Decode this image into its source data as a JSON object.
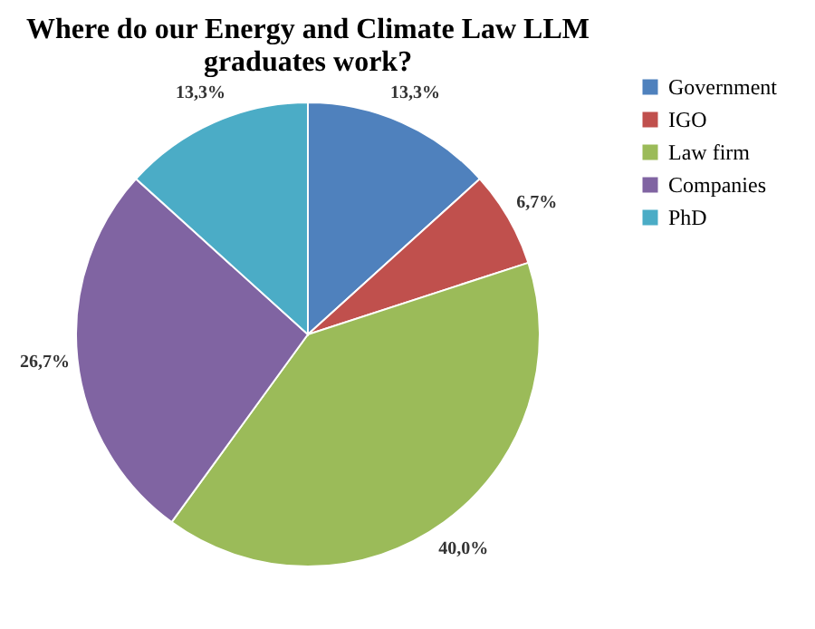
{
  "chart_data": {
    "type": "pie",
    "title": "Where do our Energy and Climate Law LLM graduates work?",
    "categories": [
      "Government",
      "IGO",
      "Law firm",
      "Companies",
      "PhD"
    ],
    "values": [
      13.3,
      6.7,
      40.0,
      26.7,
      13.3
    ],
    "colors": [
      "#4f81bd",
      "#c0504d",
      "#9bbb59",
      "#8064a2",
      "#4bacc6"
    ],
    "value_labels": [
      "13,3%",
      "6,7%",
      "40,0%",
      "26,7%",
      "13,3%"
    ],
    "legend": "right"
  }
}
